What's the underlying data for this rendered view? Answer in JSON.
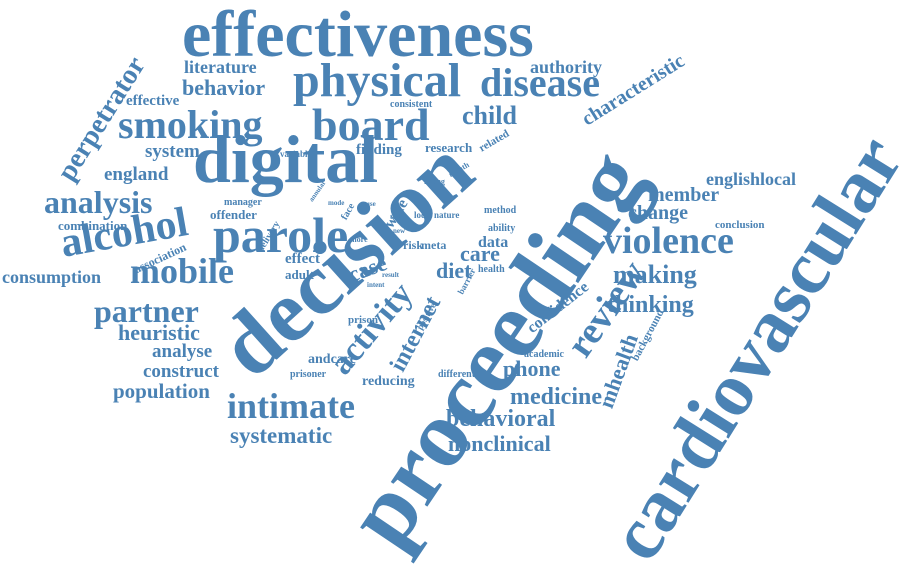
{
  "theme": {
    "word_color": "#4a82b4",
    "background": "#ffffff"
  },
  "words": [
    "effectiveness",
    "physical",
    "disease",
    "literature",
    "authority",
    "behavior",
    "effective",
    "smoking",
    "board",
    "child",
    "consistent",
    "characteristic",
    "perpetrator",
    "system",
    "digital",
    "finding",
    "research",
    "related",
    "england",
    "analysis",
    "decision",
    "proceeding",
    "cardiovascular",
    "alcohol",
    "parole",
    "violence",
    "review",
    "englishlocal",
    "member",
    "change",
    "combination",
    "association",
    "consumption",
    "mobile",
    "making",
    "partner",
    "heuristic",
    "analyse",
    "construct",
    "population",
    "intimate",
    "systematic",
    "activity",
    "internet",
    "care",
    "diet",
    "data",
    "case",
    "effect",
    "adult",
    "thinking",
    "confidence",
    "medicine",
    "phone",
    "mhealth",
    "behavioral",
    "nonclinical",
    "reducing",
    "different",
    "prisoner",
    "andcare",
    "prison",
    "academic",
    "background",
    "conclusion",
    "offender",
    "manager",
    "delivery",
    "rating",
    "month",
    "variable",
    "method",
    "ability",
    "health",
    "risk",
    "meta",
    "nature",
    "local",
    "face",
    "wale",
    "positive",
    "intent",
    "result",
    "barrier",
    "mode",
    "use",
    "new",
    "more",
    "tool",
    "annular"
  ]
}
